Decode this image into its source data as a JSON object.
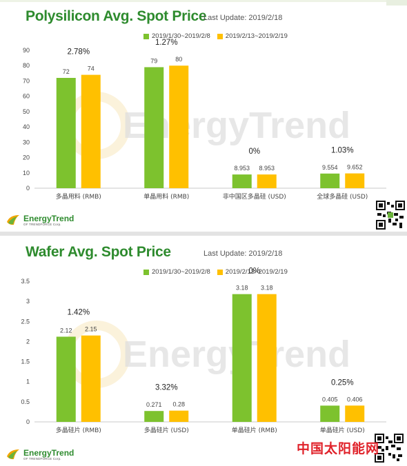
{
  "panels": [
    {
      "title": "Polysilicon Avg. Spot Price",
      "last_update": "Last Update: 2019/2/18",
      "watermark": "EnergyTrend",
      "brand": {
        "name": "EnergyTrend",
        "sub": "OF TRENDFORCE Corp."
      }
    },
    {
      "title": "Wafer Avg. Spot Price",
      "last_update": "Last Update: 2019/2/18",
      "watermark": "EnergyTrend",
      "brand": {
        "name": "EnergyTrend",
        "sub": "OF TRENDFORCE Corp."
      }
    }
  ],
  "site_mark": "中国太阳能网",
  "colors": {
    "series_a": "#7dc22e",
    "series_b": "#ffc000",
    "title": "#2e8b2e",
    "axis": "#c8c8c8"
  },
  "chart_data": [
    {
      "type": "bar",
      "categories": [
        "多晶用料 (RMB)",
        "单晶用料 (RMB)",
        "非中国区多晶硅 (USD)",
        "全球多晶硅 (USD)"
      ],
      "series": [
        {
          "name": "2019/1/30~2019/2/8",
          "values": [
            72,
            79,
            8.953,
            9.554
          ],
          "labels": [
            "72",
            "79",
            "8.953",
            "9.554"
          ]
        },
        {
          "name": "2019/2/13~2019/2/19",
          "values": [
            74,
            80,
            8.953,
            9.652
          ],
          "labels": [
            "74",
            "80",
            "8.953",
            "9.652"
          ]
        }
      ],
      "changes": [
        "2.78%",
        "1.27%",
        "0%",
        "1.03%"
      ],
      "ylim": [
        0,
        90
      ],
      "yticks": [
        "0",
        "10",
        "20",
        "30",
        "40",
        "50",
        "60",
        "70",
        "80",
        "90"
      ],
      "ytick_values": [
        0,
        10,
        20,
        30,
        40,
        50,
        60,
        70,
        80,
        90
      ],
      "legend": "top-center"
    },
    {
      "type": "bar",
      "categories": [
        "多晶硅片 (RMB)",
        "多晶硅片 (USD)",
        "单晶硅片 (RMB)",
        "单晶硅片 (USD)"
      ],
      "series": [
        {
          "name": "2019/1/30~2019/2/8",
          "values": [
            2.12,
            0.271,
            3.18,
            0.405
          ],
          "labels": [
            "2.12",
            "0.271",
            "3.18",
            "0.405"
          ]
        },
        {
          "name": "2019/2/13~2019/2/19",
          "values": [
            2.15,
            0.28,
            3.18,
            0.406
          ],
          "labels": [
            "2.15",
            "0.28",
            "3.18",
            "0.406"
          ]
        }
      ],
      "changes": [
        "1.42%",
        "3.32%",
        "0%",
        "0.25%"
      ],
      "ylim": [
        0,
        3.5
      ],
      "yticks": [
        "0",
        "0.5",
        "1",
        "1.5",
        "2",
        "2.5",
        "3",
        "3.5"
      ],
      "ytick_values": [
        0,
        0.5,
        1,
        1.5,
        2,
        2.5,
        3,
        3.5
      ],
      "legend": "top-center"
    }
  ]
}
